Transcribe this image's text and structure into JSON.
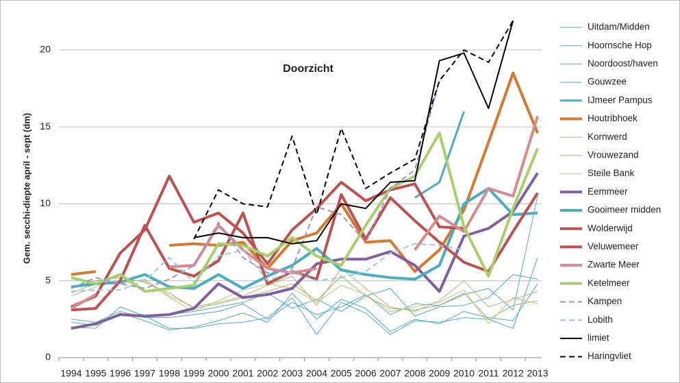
{
  "chart_data": {
    "type": "line",
    "title": "Doorzicht",
    "y_label": "Gem. secchi-diepte april - sept  (dm)",
    "categories": [
      "1994",
      "1995",
      "1996",
      "1997",
      "1998",
      "1999",
      "2000",
      "2001",
      "2002",
      "2003",
      "2004",
      "2005",
      "2006",
      "2007",
      "2008",
      "2009",
      "2010",
      "2011",
      "2012",
      "2013"
    ],
    "ylim": [
      0,
      22
    ],
    "yticks": [
      0,
      5,
      10,
      15,
      20
    ],
    "grid": true,
    "legend": "right",
    "series": [
      {
        "name": "Uitdam/Midden",
        "color": "#4bacc6",
        "line_width": 1,
        "dashed": false,
        "values": [
          2.0,
          1.9,
          3.3,
          2.7,
          1.9,
          1.9,
          2.2,
          2.3,
          2.6,
          3.9,
          1.5,
          3.6,
          2.9,
          1.5,
          2.4,
          2.3,
          2.6,
          2.5,
          1.9,
          6.5
        ]
      },
      {
        "name": "Hoornsche Hop",
        "color": "#4bacc6",
        "line_width": 1,
        "dashed": false,
        "values": [
          2.3,
          2.1,
          2.9,
          2.4,
          1.8,
          2.0,
          2.4,
          2.9,
          2.3,
          4.2,
          2.5,
          3.8,
          3.2,
          1.7,
          2.5,
          2.2,
          3.0,
          2.6,
          2.4,
          4.8
        ]
      },
      {
        "name": "Noordoost/haven",
        "color": "#4bacc6",
        "line_width": 1,
        "dashed": false,
        "values": [
          2.5,
          2.3,
          3.0,
          2.6,
          2.6,
          2.8,
          3.0,
          3.5,
          2.5,
          3.6,
          2.8,
          3.3,
          4.1,
          2.8,
          3.5,
          3.4,
          4.1,
          4.5,
          3.1,
          10.5
        ]
      },
      {
        "name": "Gouwzee",
        "color": "#4bacc6",
        "line_width": 1,
        "dashed": false,
        "values": [
          null,
          null,
          null,
          null,
          2.8,
          3.0,
          3.3,
          3.6,
          4.2,
          3.2,
          3.8,
          3.0,
          4.0,
          4.5,
          2.7,
          3.3,
          3.4,
          3.9,
          5.4,
          5.1
        ]
      },
      {
        "name": "IJmeer Pampus",
        "color": "#4bacc6",
        "line_width": 3,
        "dashed": false,
        "values": [
          null,
          null,
          null,
          null,
          null,
          null,
          null,
          null,
          null,
          null,
          null,
          null,
          null,
          null,
          10.4,
          11.4,
          16.0,
          null,
          null,
          null
        ]
      },
      {
        "name": "Houtribhoek",
        "color": "#d9782b",
        "line_width": 4,
        "dashed": false,
        "values": [
          5.4,
          5.6,
          null,
          null,
          7.3,
          7.4,
          7.3,
          7.5,
          5.8,
          7.6,
          8.1,
          10.0,
          7.5,
          7.6,
          5.6,
          7.0,
          9.6,
          14.0,
          18.5,
          14.6
        ]
      },
      {
        "name": "Kornwerd",
        "color": "#b5b86a",
        "line_width": 1,
        "dashed": false,
        "values": [
          4.2,
          4.8,
          4.8,
          5.1,
          4.0,
          3.3,
          3.6,
          4.0,
          4.7,
          5.3,
          3.4,
          5.8,
          4.5,
          3.3,
          3.0,
          3.7,
          5.0,
          3.3,
          3.8,
          4.3
        ]
      },
      {
        "name": "Vrouwezand",
        "color": "#a8b060",
        "line_width": 1,
        "dashed": false,
        "values": [
          4.5,
          5.0,
          5.2,
          4.9,
          4.2,
          3.2,
          3.5,
          3.9,
          4.3,
          4.8,
          3.7,
          5.3,
          4.0,
          3.2,
          3.1,
          3.4,
          4.2,
          2.5,
          3.4,
          3.7
        ]
      },
      {
        "name": "Steile Bank",
        "color": "#c4c27a",
        "line_width": 1,
        "dashed": false,
        "values": [
          4.0,
          4.6,
          5.0,
          5.0,
          3.9,
          3.0,
          3.7,
          4.4,
          4.8,
          4.5,
          3.6,
          4.7,
          4.1,
          3.0,
          3.3,
          3.6,
          4.4,
          2.2,
          3.9,
          3.5
        ]
      },
      {
        "name": "Eemmeer",
        "color": "#7f5fa0",
        "line_width": 4,
        "dashed": false,
        "values": [
          1.9,
          2.2,
          2.8,
          2.7,
          2.8,
          3.2,
          4.8,
          3.9,
          4.1,
          4.5,
          6.1,
          6.4,
          6.4,
          6.9,
          6.0,
          4.3,
          7.9,
          8.4,
          9.5,
          12.0
        ]
      },
      {
        "name": "Gooimeer midden",
        "color": "#4bacc6",
        "line_width": 4,
        "dashed": false,
        "values": [
          4.6,
          4.8,
          4.9,
          5.4,
          4.6,
          4.5,
          5.4,
          4.5,
          5.3,
          6.0,
          7.1,
          5.7,
          5.4,
          5.2,
          5.1,
          6.0,
          10.0,
          11.0,
          9.3,
          9.4
        ]
      },
      {
        "name": "Wolderwijd",
        "color": "#c0504d",
        "line_width": 4,
        "dashed": false,
        "values": [
          3.1,
          3.2,
          5.0,
          8.6,
          5.8,
          5.3,
          6.3,
          9.4,
          4.8,
          5.6,
          5.1,
          10.6,
          7.7,
          10.4,
          8.9,
          7.5,
          6.2,
          5.6,
          8.2,
          10.7
        ]
      },
      {
        "name": "Veluwemeer",
        "color": "#c0504d",
        "line_width": 4,
        "dashed": false,
        "values": [
          3.3,
          4.0,
          6.8,
          8.3,
          11.8,
          8.8,
          9.4,
          8.1,
          6.1,
          8.3,
          9.7,
          11.4,
          10.2,
          10.9,
          11.3,
          8.5,
          8.4,
          null,
          null,
          null
        ]
      },
      {
        "name": "Zwarte Meer",
        "color": "#d98a8a",
        "line_width": 4,
        "dashed": false,
        "values": [
          3.2,
          4.1,
          null,
          null,
          5.9,
          6.0,
          8.6,
          7.0,
          5.8,
          5.5,
          5.8,
          null,
          null,
          null,
          7.0,
          9.2,
          8.2,
          11.0,
          10.5,
          15.7
        ]
      },
      {
        "name": "Ketelmeer",
        "color": "#a6d06a",
        "line_width": 4,
        "dashed": false,
        "values": [
          5.2,
          4.8,
          5.4,
          4.3,
          4.5,
          4.7,
          7.4,
          7.3,
          6.6,
          7.8,
          6.6,
          6.0,
          8.6,
          11.0,
          11.8,
          14.6,
          8.5,
          5.3,
          9.7,
          13.6
        ]
      },
      {
        "name": "Kampen",
        "color": "#9f8fcf",
        "line_width": 2,
        "dashed": true,
        "values": [
          4.5,
          5.2,
          4.8,
          4.5,
          5.1,
          6.0,
          8.8,
          6.5,
          5.5,
          5.8,
          9.8,
          9.3,
          7.5,
          11.0,
          12.2,
          18.0,
          null,
          null,
          null,
          null
        ]
      },
      {
        "name": "Lobith",
        "color": "#93cddd",
        "line_width": 2,
        "dashed": true,
        "values": [
          4.3,
          4.4,
          4.4,
          5.0,
          6.5,
          4.9,
          6.6,
          7.0,
          5.0,
          5.6,
          5.0,
          5.2,
          5.6,
          6.8,
          7.4,
          7.3,
          7.0,
          null,
          null,
          null
        ]
      },
      {
        "name": "limiet",
        "color": "#000000",
        "line_width": 2,
        "dashed": false,
        "values": [
          null,
          null,
          null,
          null,
          null,
          7.8,
          8.1,
          7.8,
          7.8,
          7.4,
          7.6,
          10.0,
          9.7,
          11.4,
          11.5,
          19.3,
          19.8,
          16.2,
          21.9,
          null
        ]
      },
      {
        "name": "Haringvliet",
        "color": "#000000",
        "line_width": 2,
        "dashed": true,
        "values": [
          null,
          null,
          null,
          null,
          null,
          7.7,
          10.9,
          10.0,
          9.8,
          14.4,
          9.3,
          14.9,
          11.0,
          12.0,
          12.9,
          18.0,
          20.0,
          19.2,
          21.9,
          null
        ]
      }
    ]
  }
}
